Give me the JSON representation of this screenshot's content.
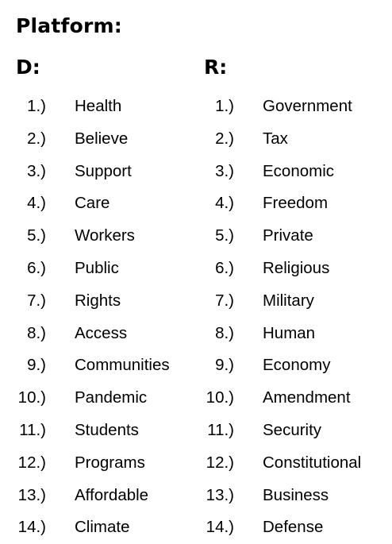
{
  "title": "Platform:",
  "columns": [
    {
      "heading": "D:",
      "items": [
        {
          "num": "1.)",
          "word": "Health"
        },
        {
          "num": "2.)",
          "word": "Believe"
        },
        {
          "num": "3.)",
          "word": "Support"
        },
        {
          "num": "4.)",
          "word": "Care"
        },
        {
          "num": "5.)",
          "word": "Workers"
        },
        {
          "num": "6.)",
          "word": "Public"
        },
        {
          "num": "7.)",
          "word": "Rights"
        },
        {
          "num": "8.)",
          "word": "Access"
        },
        {
          "num": "9.)",
          "word": "Communities"
        },
        {
          "num": "10.)",
          "word": "Pandemic"
        },
        {
          "num": "11.)",
          "word": "Students"
        },
        {
          "num": "12.)",
          "word": "Programs"
        },
        {
          "num": "13.)",
          "word": "Affordable"
        },
        {
          "num": "14.)",
          "word": "Climate"
        }
      ]
    },
    {
      "heading": "R:",
      "items": [
        {
          "num": "1.)",
          "word": "Government"
        },
        {
          "num": "2.)",
          "word": "Tax"
        },
        {
          "num": "3.)",
          "word": "Economic"
        },
        {
          "num": "4.)",
          "word": "Freedom"
        },
        {
          "num": "5.)",
          "word": "Private"
        },
        {
          "num": "6.)",
          "word": "Religious"
        },
        {
          "num": "7.)",
          "word": "Military"
        },
        {
          "num": "8.)",
          "word": "Human"
        },
        {
          "num": "9.)",
          "word": "Economy"
        },
        {
          "num": "10.)",
          "word": "Amendment"
        },
        {
          "num": "11.)",
          "word": "Security"
        },
        {
          "num": "12.)",
          "word": "Constitutional"
        },
        {
          "num": "13.)",
          "word": "Business"
        },
        {
          "num": "14.)",
          "word": "Defense"
        }
      ]
    }
  ]
}
